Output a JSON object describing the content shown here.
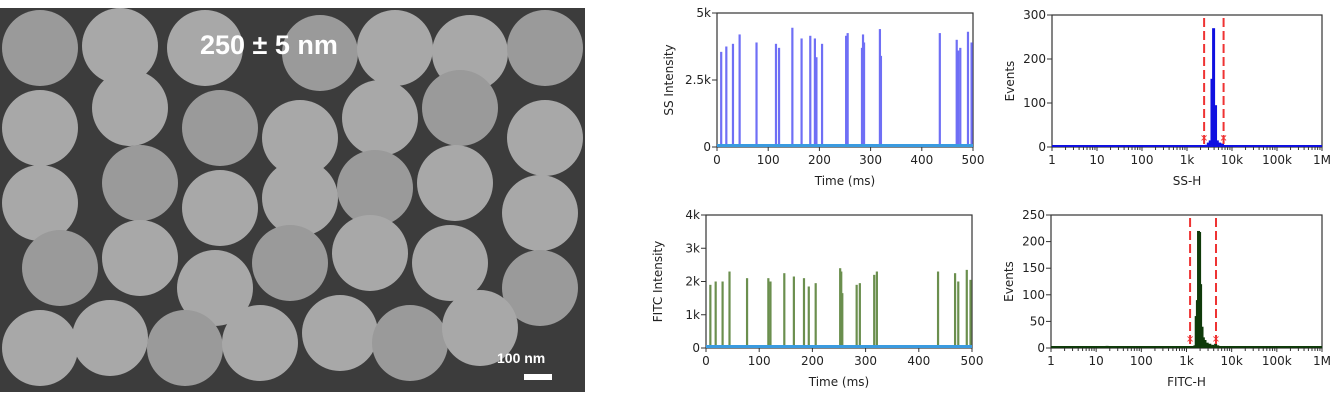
{
  "sem_image": {
    "size_label": "250 ± 5 nm",
    "scale_bar_label": "100 nm"
  },
  "chart_data": [
    {
      "id": "ss-time",
      "type": "bar",
      "xlabel": "Time (ms)",
      "ylabel": "SS Intensity",
      "xlim": [
        0,
        500
      ],
      "ylim": [
        0,
        5000
      ],
      "xticks": [
        0,
        100,
        200,
        300,
        400,
        500
      ],
      "xtick_labels": [
        "0",
        "100",
        "200",
        "300",
        "400",
        "500"
      ],
      "yticks": [
        0,
        2500,
        5000
      ],
      "ytick_labels": [
        "0",
        "2.5k",
        "5k"
      ],
      "color": "#6f6ff5",
      "baseline_color": "#3a9be0",
      "x": [
        8,
        18,
        31,
        44,
        77,
        115,
        121,
        147,
        165,
        182,
        191,
        194,
        205,
        252,
        255,
        283,
        285,
        287,
        318,
        320,
        435,
        468,
        471,
        475,
        490,
        497
      ],
      "values": [
        3550,
        3750,
        3850,
        4200,
        3900,
        3850,
        3700,
        4450,
        4050,
        4150,
        4050,
        3350,
        3850,
        4150,
        4250,
        3700,
        4200,
        3900,
        4400,
        3400,
        4250,
        4000,
        3600,
        3700,
        4300,
        3900
      ]
    },
    {
      "id": "ss-hist",
      "type": "bar",
      "xscale": "log",
      "xlabel": "SS-H",
      "ylabel": "Events",
      "xlim": [
        1,
        1000000
      ],
      "ylim": [
        0,
        300
      ],
      "xticks": [
        1,
        10,
        100,
        1000,
        10000,
        100000,
        1000000
      ],
      "xtick_labels": [
        "1",
        "10",
        "100",
        "1k",
        "10k",
        "100k",
        "1M"
      ],
      "yticks": [
        0,
        100,
        200,
        300
      ],
      "ytick_labels": [
        "0",
        "100",
        "200",
        "300"
      ],
      "color": "#1010e0",
      "gates": [
        2400,
        6500
      ],
      "gate_color": "#ee3333",
      "x": [
        18,
        25,
        800,
        1400,
        2600,
        2900,
        3200,
        3500,
        3800,
        4200,
        4600,
        5200,
        6000,
        7500,
        9000,
        12000
      ],
      "values": [
        2,
        3,
        2,
        2,
        5,
        10,
        15,
        155,
        270,
        95,
        15,
        10,
        8,
        4,
        3,
        2
      ]
    },
    {
      "id": "fitc-time",
      "type": "bar",
      "xlabel": "Time (ms)",
      "ylabel": "FITC Intensity",
      "xlim": [
        0,
        500
      ],
      "ylim": [
        0,
        4000
      ],
      "xticks": [
        0,
        100,
        200,
        300,
        400,
        500
      ],
      "xtick_labels": [
        "0",
        "100",
        "200",
        "300",
        "400",
        "500"
      ],
      "yticks": [
        0,
        1000,
        2000,
        3000,
        4000
      ],
      "ytick_labels": [
        "0",
        "1k",
        "2k",
        "3k",
        "4k"
      ],
      "color": "#6b8f4e",
      "baseline_color": "#3a9be0",
      "x": [
        8,
        18,
        31,
        44,
        77,
        117,
        121,
        147,
        165,
        184,
        193,
        206,
        252,
        254,
        256,
        283,
        289,
        316,
        321,
        436,
        468,
        474,
        490,
        497
      ],
      "values": [
        1900,
        2000,
        2000,
        2300,
        2100,
        2100,
        2000,
        2250,
        2150,
        2100,
        1850,
        1950,
        2400,
        2300,
        1650,
        1900,
        1950,
        2200,
        2300,
        2300,
        2250,
        2000,
        2350,
        2050
      ]
    },
    {
      "id": "fitc-hist",
      "type": "bar",
      "xscale": "log",
      "xlabel": "FITC-H",
      "ylabel": "Events",
      "xlim": [
        1,
        1000000
      ],
      "ylim": [
        0,
        250
      ],
      "xticks": [
        1,
        10,
        100,
        1000,
        10000,
        100000,
        1000000
      ],
      "xtick_labels": [
        "1",
        "10",
        "100",
        "1k",
        "10k",
        "100k",
        "1M"
      ],
      "yticks": [
        0,
        50,
        100,
        150,
        200,
        250
      ],
      "ytick_labels": [
        "0",
        "50",
        "100",
        "150",
        "200",
        "250"
      ],
      "color": "#0f3a0a",
      "gates": [
        1200,
        4500
      ],
      "gate_color": "#ee3333",
      "x": [
        17,
        19,
        1500,
        1600,
        1700,
        1800,
        1900,
        2000,
        2150,
        2300,
        2500,
        2800,
        3200,
        3700,
        4300,
        4800
      ],
      "values": [
        4,
        3,
        5,
        60,
        90,
        220,
        218,
        120,
        40,
        20,
        15,
        10,
        8,
        6,
        8,
        5
      ]
    }
  ]
}
